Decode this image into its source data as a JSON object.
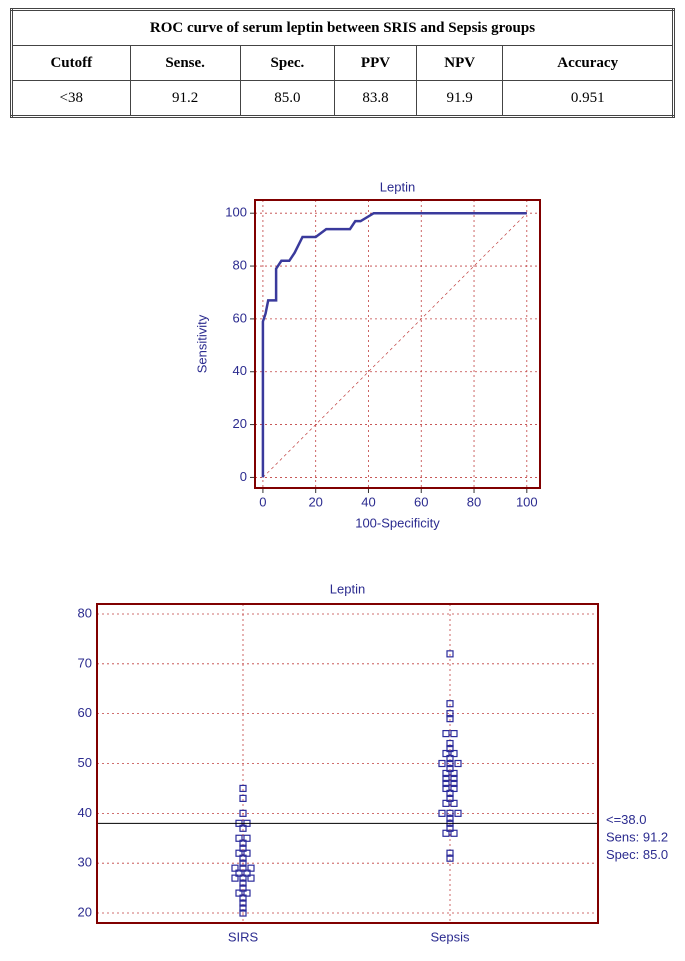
{
  "table": {
    "title": "ROC curve of serum leptin between SRIS and Sepsis groups",
    "header": [
      "Cutoff",
      "Sense.",
      "Spec.",
      "PPV",
      "NPV",
      "Accuracy"
    ],
    "rows": [
      [
        "<38",
        "91.2",
        "85.0",
        "83.8",
        "91.9",
        "0.951"
      ]
    ]
  },
  "chart_data": [
    {
      "type": "line",
      "title": "Leptin",
      "xlabel": "100-Specificity",
      "ylabel": "Sensitivity",
      "xlim": [
        -3,
        105
      ],
      "ylim": [
        -4,
        105
      ],
      "xticks": [
        0,
        20,
        40,
        60,
        80,
        100
      ],
      "yticks": [
        0,
        20,
        40,
        60,
        80,
        100
      ],
      "grid": true,
      "x": [
        0,
        0,
        1,
        2,
        5,
        5,
        7,
        9,
        10,
        12,
        15,
        20,
        24,
        33,
        35,
        37,
        42,
        100
      ],
      "y": [
        0,
        59,
        62,
        67,
        67,
        79,
        82,
        82,
        82,
        85,
        91,
        91,
        94,
        94,
        97,
        97,
        100,
        100
      ],
      "color": "#3a3a9c"
    },
    {
      "type": "dot",
      "title": "Leptin",
      "categories": [
        "SIRS",
        "Sepsis"
      ],
      "ylim": [
        18,
        82
      ],
      "yticks": [
        20,
        30,
        40,
        50,
        60,
        70,
        80
      ],
      "grid": true,
      "color": "#2b2b9b",
      "values": [
        [
          45,
          43,
          40,
          38,
          38,
          37,
          35,
          35,
          34,
          33,
          32,
          32,
          31,
          30,
          29,
          29,
          29,
          28,
          28,
          27,
          27,
          27,
          26,
          25,
          24,
          24,
          23,
          22,
          21,
          20
        ],
        [
          72,
          62,
          60,
          59,
          56,
          56,
          54,
          53,
          52,
          52,
          51,
          50,
          50,
          50,
          49,
          48,
          48,
          47,
          47,
          46,
          46,
          45,
          45,
          44,
          43,
          42,
          42,
          40,
          40,
          40,
          39,
          38,
          37,
          36,
          36,
          32,
          31
        ]
      ],
      "cutoff": 38,
      "annotations": [
        "<=38.0",
        "Sens: 91.2",
        "Spec: 85.0"
      ]
    }
  ]
}
